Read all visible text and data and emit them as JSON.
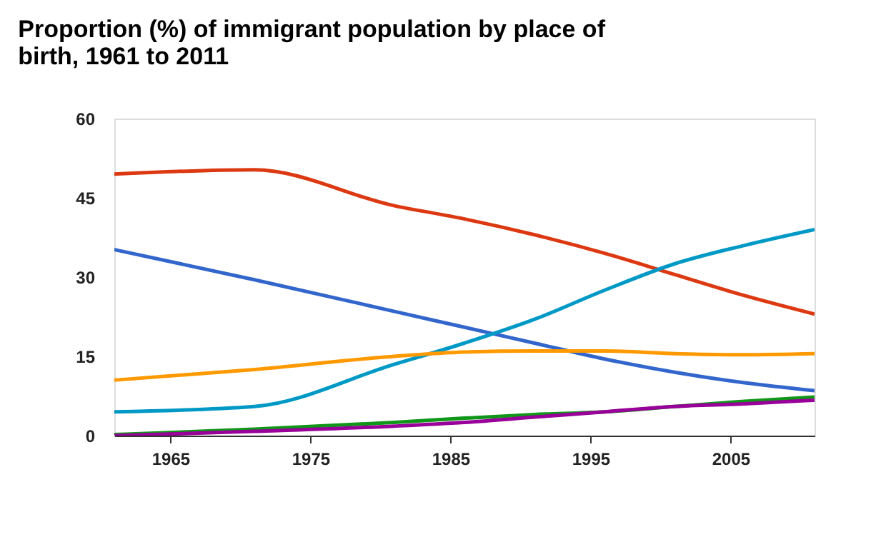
{
  "chart_data": {
    "type": "line",
    "title": "Proportion (%) of immigrant population by place of birth, 1961 to 2011",
    "x": [
      1961,
      1971,
      1981,
      1986,
      1991,
      1996,
      2001,
      2006,
      2011
    ],
    "xlim": [
      1961,
      2011
    ],
    "xticks": [
      1965,
      1975,
      1985,
      1995,
      2005
    ],
    "ylim": [
      0,
      60
    ],
    "yticks": [
      0,
      15,
      30,
      45,
      60
    ],
    "grid": false,
    "legend": false,
    "marker": "none",
    "line_style": "solid",
    "series": [
      {
        "color": "#dc3912",
        "values": [
          49.5,
          50.3,
          43.5,
          41,
          38,
          34.5,
          30.5,
          26.5,
          23
        ]
      },
      {
        "color": "#3366cc",
        "values": [
          35.2,
          29.5,
          23.5,
          20.5,
          17.5,
          14.5,
          12,
          10,
          8.5
        ]
      },
      {
        "color": "#0099c6",
        "values": [
          4.5,
          5.5,
          13.5,
          17.5,
          22,
          27.5,
          32.5,
          36,
          39
        ]
      },
      {
        "color": "#ff9900",
        "values": [
          10.5,
          12.5,
          15,
          15.8,
          16,
          16,
          15.5,
          15.3,
          15.5
        ]
      },
      {
        "color": "#109618",
        "values": [
          0.2,
          1.2,
          2.5,
          3.3,
          4,
          4.5,
          5.5,
          6.5,
          7.3
        ]
      },
      {
        "color": "#990099",
        "values": [
          0,
          0.8,
          1.8,
          2.5,
          3.5,
          4.5,
          5.5,
          6,
          6.7
        ]
      }
    ]
  }
}
